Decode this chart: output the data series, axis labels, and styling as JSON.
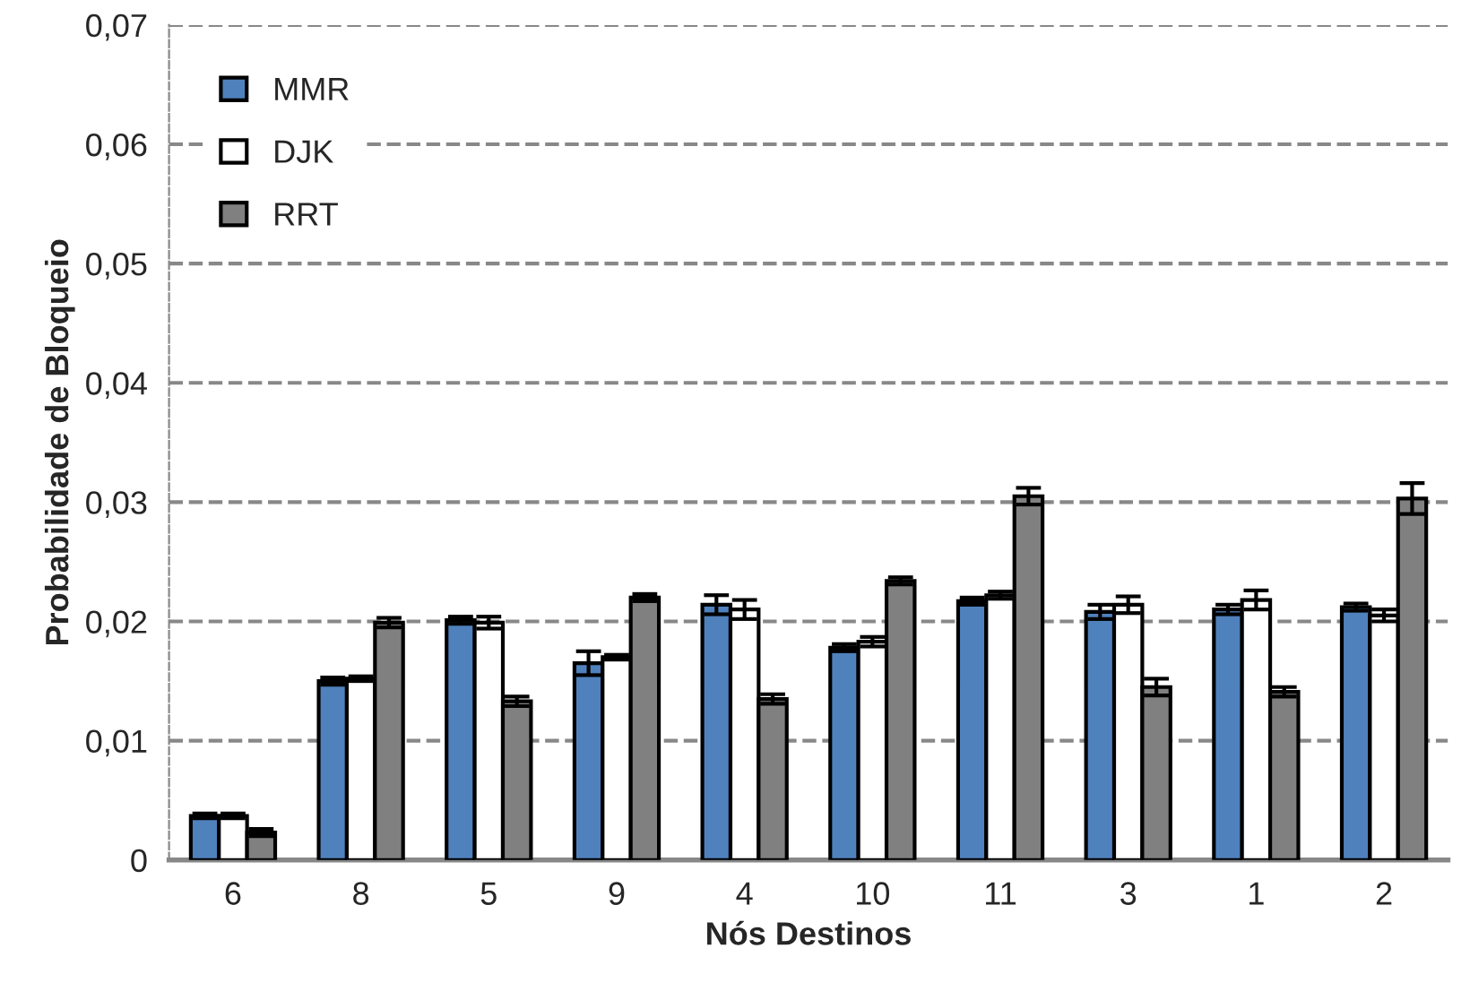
{
  "chart_data": {
    "type": "bar",
    "xlabel": "Nós Destinos",
    "ylabel": "Probabilidade de Bloqueio",
    "categories": [
      "6",
      "8",
      "5",
      "9",
      "4",
      "10",
      "11",
      "3",
      "1",
      "2"
    ],
    "series": [
      {
        "name": "MMR",
        "color": "#4f81bd",
        "values": [
          0.0037,
          0.015,
          0.0201,
          0.0165,
          0.0214,
          0.0178,
          0.0217,
          0.0208,
          0.021,
          0.0212
        ],
        "errors": [
          0.0002,
          0.0003,
          0.0003,
          0.001,
          0.0008,
          0.0003,
          0.0003,
          0.0006,
          0.0004,
          0.0003
        ]
      },
      {
        "name": "DJK",
        "color": "#ffffff",
        "values": [
          0.0037,
          0.0152,
          0.0199,
          0.017,
          0.021,
          0.0183,
          0.0222,
          0.0214,
          0.0218,
          0.0205
        ],
        "errors": [
          0.0002,
          0.0002,
          0.0005,
          0.0002,
          0.0008,
          0.0004,
          0.0003,
          0.0007,
          0.0008,
          0.0005
        ]
      },
      {
        "name": "RRT",
        "color": "#808080",
        "values": [
          0.0023,
          0.0199,
          0.0133,
          0.022,
          0.0135,
          0.0234,
          0.0305,
          0.0145,
          0.0141,
          0.0303
        ],
        "errors": [
          0.0003,
          0.0004,
          0.0004,
          0.0003,
          0.0004,
          0.0003,
          0.0007,
          0.0007,
          0.0004,
          0.0013
        ]
      }
    ],
    "ylim": [
      0,
      0.07
    ],
    "yticks": [
      0,
      {
        "value": 0.01,
        "label": "0,01"
      },
      {
        "value": 0.02,
        "label": "0,02"
      },
      {
        "value": 0.03,
        "label": "0,03"
      },
      {
        "value": 0.04,
        "label": "0,04"
      },
      {
        "value": 0.05,
        "label": "0,05"
      },
      {
        "value": 0.06,
        "label": "0,06"
      },
      {
        "value": 0.07,
        "label": "0,07"
      }
    ],
    "grid": "y",
    "legend": "top left"
  }
}
